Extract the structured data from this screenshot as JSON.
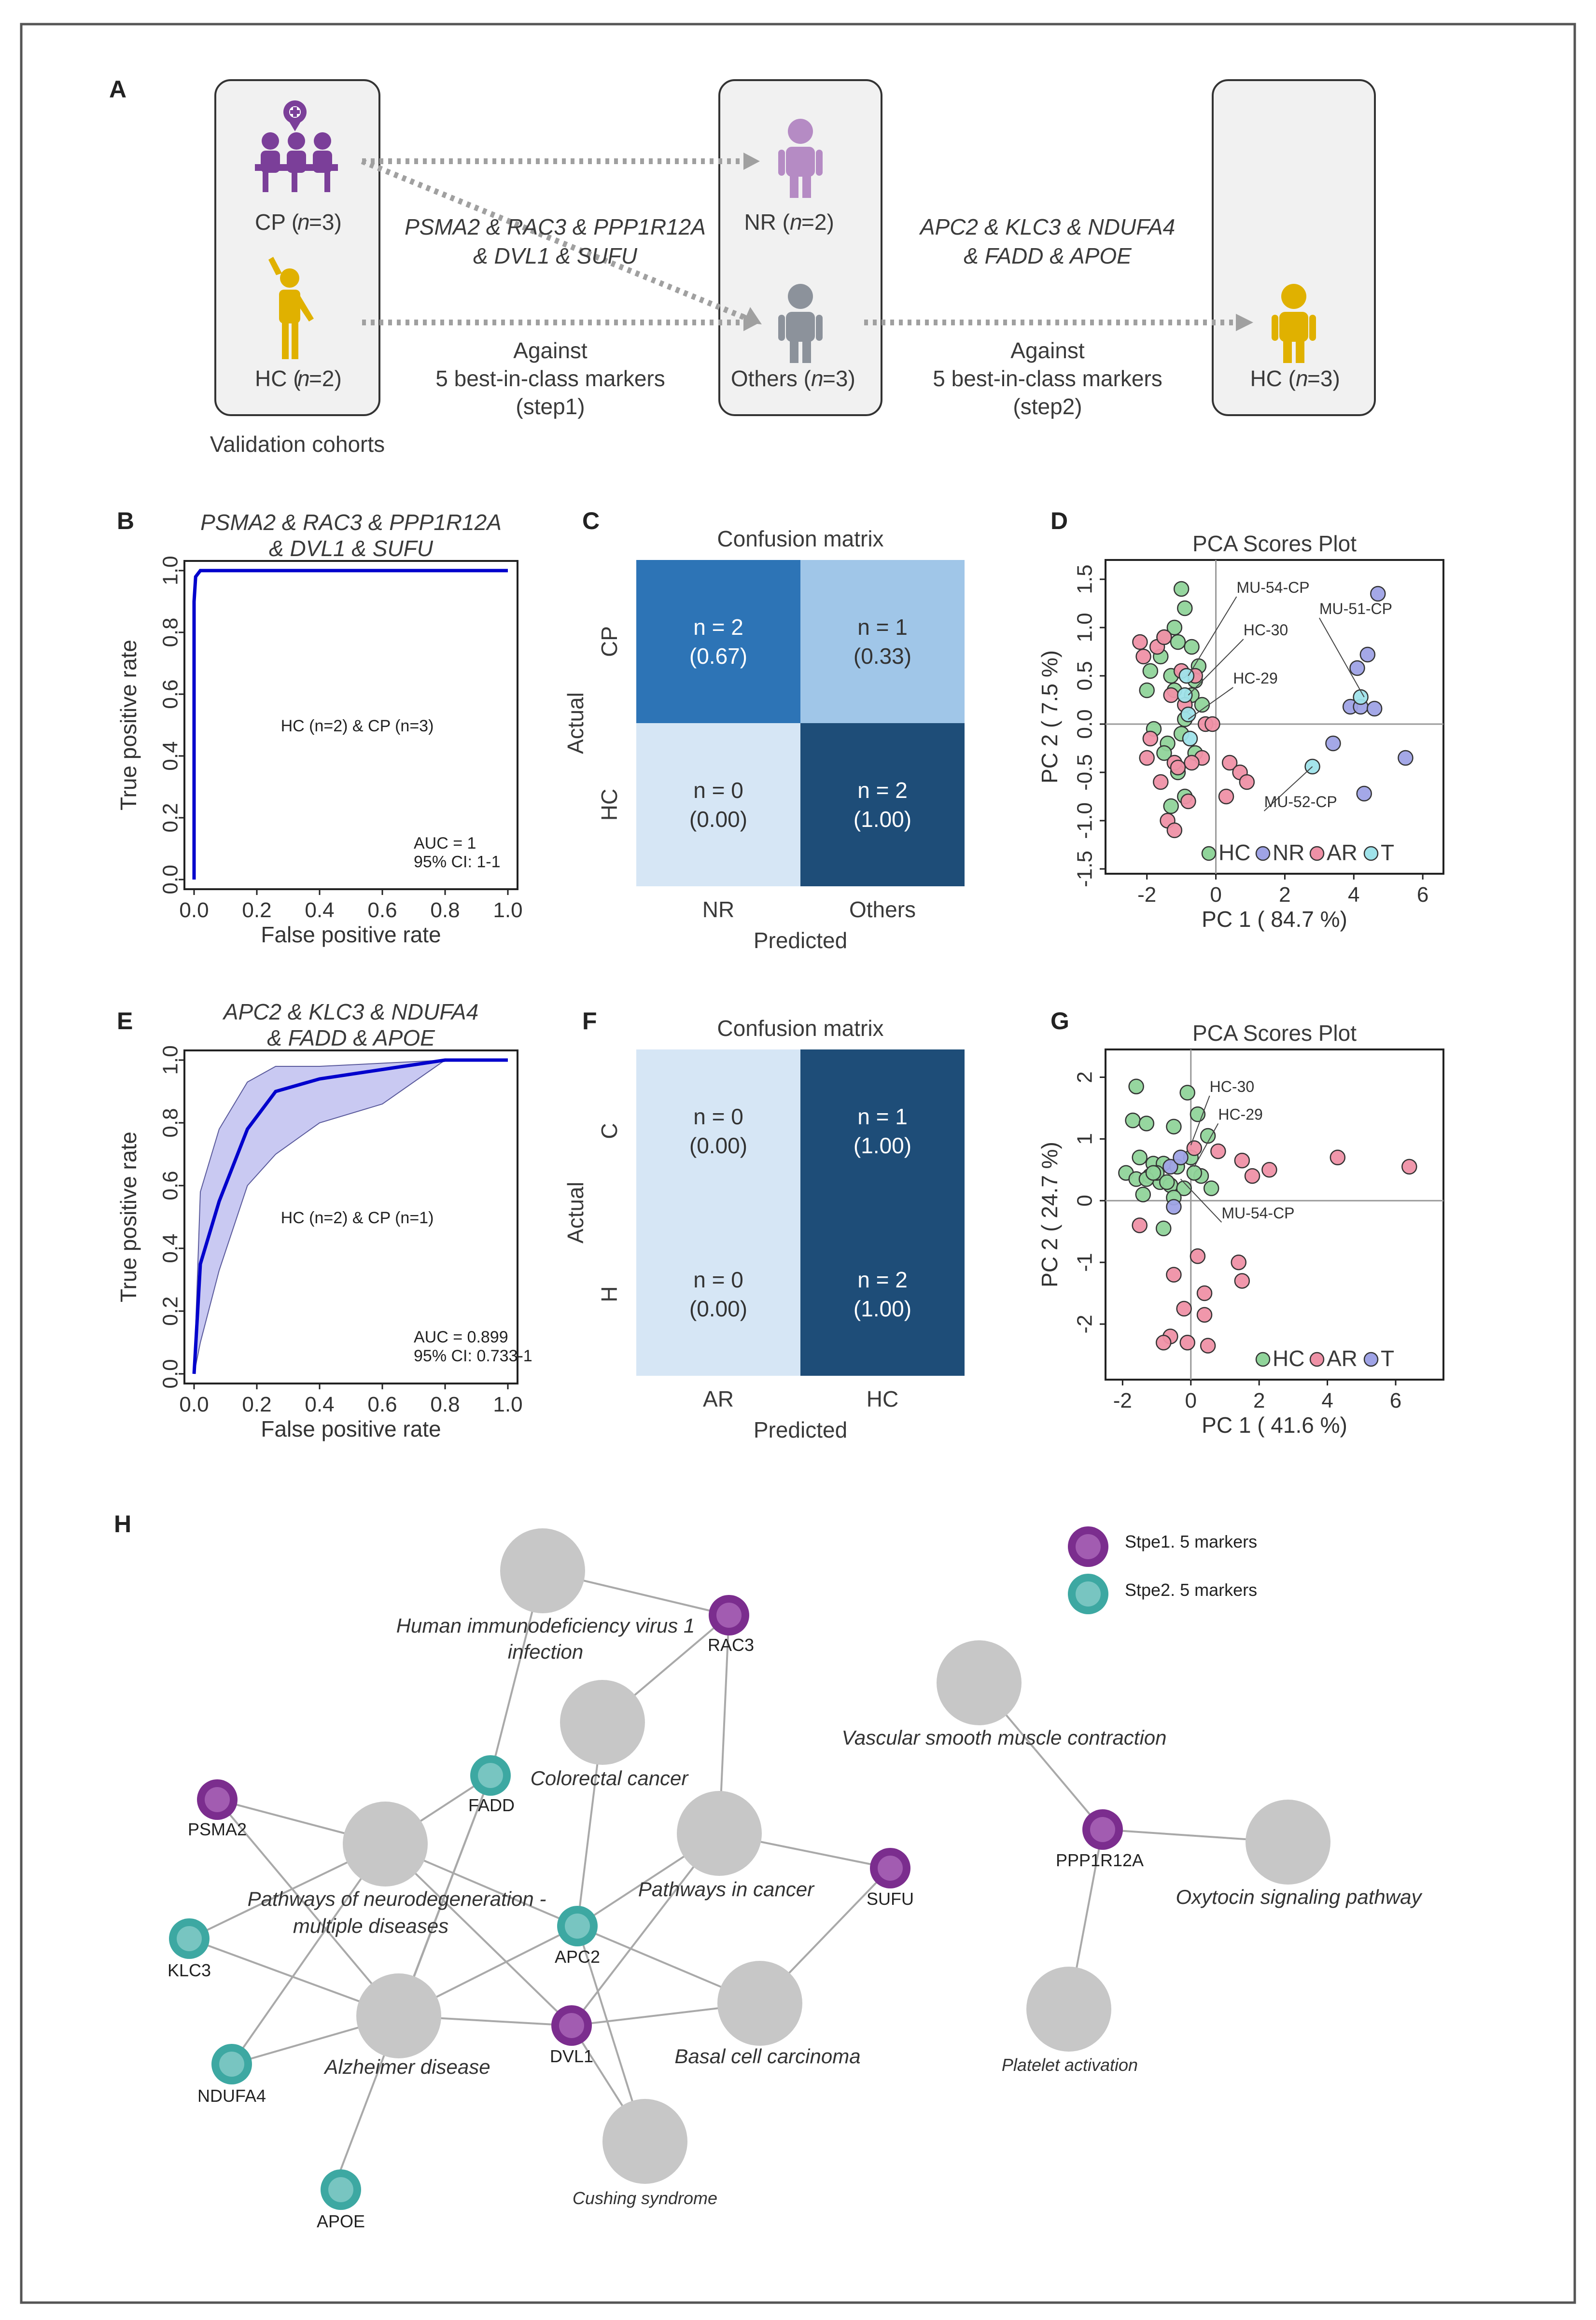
{
  "panels": {
    "A": "A",
    "B": "B",
    "C": "C",
    "D": "D",
    "E": "E",
    "F": "F",
    "G": "G",
    "H": "H"
  },
  "panel_a": {
    "cp_label": "CP (",
    "hc_label": "HC (",
    "n_eq_3": "n",
    "count_3": "=3)",
    "count_2": "=2)",
    "nr_label": "NR (",
    "others_label": "Others (",
    "hc3_label": "HC (",
    "validation_cohorts": "Validation cohorts",
    "markers1_line1": "PSMA2 & RAC3 & PPP1R12A",
    "markers1_line2": "& DVL1 & SUFU",
    "against": "Against",
    "best_in_class": "5 best-in-class markers",
    "step1": "(step1)",
    "markers2_line1": "APC2 & KLC3 & NDUFA4",
    "markers2_line2": "& FADD & APOE",
    "step2": "(step2)"
  },
  "colors": {
    "purple": "#7b3f99",
    "gold": "#e0b100",
    "lavender": "#b58bc4",
    "grey_person": "#8c929b",
    "arrow": "#a0a0a0",
    "cohort_box": "#f1f1f1",
    "roc_line": "#0000cc",
    "roc_band": "#c9c9f2",
    "hc_pt": "#90d49a",
    "nr_pt": "#9fa3e6",
    "ar_pt": "#ef91a6",
    "t_pt": "#9fe3ea",
    "cm_dark": "#1e4d78",
    "cm_mid": "#2d74b6",
    "cm_light": "#a0c6e8",
    "cm_pale": "#d6e6f5",
    "node_grey": "#c7c7c7",
    "step1": "#7b2d8e",
    "step2": "#3da8a2"
  },
  "chart_data": [
    {
      "id": "B",
      "type": "line",
      "title_line1": "PSMA2 & RAC3 & PPP1R12A",
      "title_line2": "& DVL1 & SUFU",
      "xlabel": "False positive rate",
      "ylabel": "True positive rate",
      "xlim": [
        0,
        1
      ],
      "ylim": [
        0,
        1
      ],
      "xticks": [
        "0.0",
        "0.2",
        "0.4",
        "0.6",
        "0.8",
        "1.0"
      ],
      "yticks": [
        "0.0",
        "0.2",
        "0.4",
        "0.6",
        "0.8",
        "1.0"
      ],
      "x": [
        0,
        0.0,
        0.005,
        0.02,
        1.0
      ],
      "y": [
        0,
        0.9,
        0.98,
        1.0,
        1.0
      ],
      "center_text": "HC (n=2) & CP (n=3)",
      "auc": "AUC = 1",
      "ci": "95% CI: 1-1"
    },
    {
      "id": "E",
      "type": "line",
      "title_line1": "APC2 & KLC3 & NDUFA4",
      "title_line2": "& FADD & APOE",
      "xlabel": "False positive rate",
      "ylabel": "True positive rate",
      "xlim": [
        0,
        1
      ],
      "ylim": [
        0,
        1
      ],
      "xticks": [
        "0.0",
        "0.2",
        "0.4",
        "0.6",
        "0.8",
        "1.0"
      ],
      "yticks": [
        "0.0",
        "0.2",
        "0.4",
        "0.6",
        "0.8",
        "1.0"
      ],
      "x": [
        0,
        0.02,
        0.08,
        0.17,
        0.26,
        0.4,
        0.6,
        0.8,
        1.0
      ],
      "y": [
        0,
        0.35,
        0.55,
        0.78,
        0.9,
        0.94,
        0.97,
        1.0,
        1.0
      ],
      "band_upper": [
        0,
        0.58,
        0.78,
        0.93,
        0.98,
        0.98,
        0.99,
        1.0,
        1.0
      ],
      "band_lower": [
        0,
        0.1,
        0.33,
        0.6,
        0.7,
        0.8,
        0.86,
        1.0,
        1.0
      ],
      "band_x": [
        0,
        0.02,
        0.08,
        0.17,
        0.26,
        0.4,
        0.6,
        0.8,
        1.0
      ],
      "center_text": "HC (n=2) & CP (n=1)",
      "auc": "AUC = 0.899",
      "ci": "95% CI: 0.733-1"
    },
    {
      "id": "C",
      "type": "heatmap",
      "title": "Confusion matrix",
      "xlabel": "Predicted",
      "ylabel": "Actual",
      "cols": [
        "NR",
        "Others"
      ],
      "rows": [
        "CP",
        "HC"
      ],
      "cells": [
        [
          {
            "n": "n = 2",
            "p": "(0.67)",
            "color": "#2d74b6"
          },
          {
            "n": "n = 1",
            "p": "(0.33)",
            "color": "#a0c6e8"
          }
        ],
        [
          {
            "n": "n = 0",
            "p": "(0.00)",
            "color": "#d6e6f5"
          },
          {
            "n": "n = 2",
            "p": "(1.00)",
            "color": "#1e4d78"
          }
        ]
      ]
    },
    {
      "id": "F",
      "type": "heatmap",
      "title": "Confusion matrix",
      "xlabel": "Predicted",
      "ylabel": "Actual",
      "cols": [
        "AR",
        "HC"
      ],
      "rows": [
        "C",
        "H"
      ],
      "cells": [
        [
          {
            "n": "n = 0",
            "p": "(0.00)",
            "color": "#d6e6f5"
          },
          {
            "n": "n = 1",
            "p": "(1.00)",
            "color": "#1e4d78"
          }
        ],
        [
          {
            "n": "n = 0",
            "p": "(0.00)",
            "color": "#d6e6f5"
          },
          {
            "n": "n = 2",
            "p": "(1.00)",
            "color": "#1e4d78"
          }
        ]
      ]
    },
    {
      "id": "D",
      "type": "scatter",
      "title": "PCA Scores Plot",
      "xlabel": "PC 1 ( 84.7 %)",
      "ylabel": "PC 2 ( 7.5 %)",
      "xlim": [
        -3.2,
        6.6
      ],
      "ylim": [
        -1.55,
        1.7
      ],
      "xticks": [
        -2,
        0,
        2,
        4,
        6
      ],
      "yticks": [
        -1.5,
        -1.0,
        -0.5,
        0.0,
        0.5,
        1.0,
        1.5
      ],
      "ytick_labels": [
        "-1.5",
        "-1.0",
        "-0.5",
        "0.0",
        "0.5",
        "1.0",
        "1.5"
      ],
      "legend": [
        "HC",
        "NR",
        "AR",
        "T"
      ],
      "annotations": [
        {
          "text": "MU-54-CP",
          "px": -0.8,
          "py": 0.5,
          "tx": 0.6,
          "ty": 1.32
        },
        {
          "text": "MU-51-CP",
          "px": 4.3,
          "py": 0.28,
          "tx": 3.0,
          "ty": 1.1
        },
        {
          "text": "HC-30",
          "px": -0.8,
          "py": 0.3,
          "tx": 0.8,
          "ty": 0.88
        },
        {
          "text": "HC-29",
          "px": -0.8,
          "py": 0.05,
          "tx": 0.5,
          "ty": 0.38
        },
        {
          "text": "MU-52-CP",
          "px": 2.8,
          "py": -0.44,
          "tx": 1.4,
          "ty": -0.9
        }
      ],
      "series": [
        {
          "name": "HC",
          "color": "#90d49a",
          "x": [
            -1.0,
            -0.9,
            -1.2,
            -1.1,
            -0.7,
            -0.5,
            -1.5,
            -1.9,
            -1.6,
            -0.6,
            -1.3,
            -0.7,
            -1.2,
            -0.4,
            -0.9,
            -1.4,
            -1.5,
            -1.8,
            -1.0,
            -0.6,
            -1.1,
            -0.9,
            -1.3,
            -2.0
          ],
          "y": [
            1.4,
            1.2,
            1.0,
            0.85,
            0.8,
            0.6,
            0.9,
            0.55,
            0.7,
            0.45,
            0.5,
            0.3,
            0.35,
            0.2,
            0.05,
            -0.2,
            -0.3,
            -0.05,
            -0.1,
            -0.3,
            -0.5,
            -0.75,
            -0.85,
            0.35
          ]
        },
        {
          "name": "NR",
          "color": "#9fa3e6",
          "x": [
            4.7,
            4.4,
            4.1,
            3.9,
            4.2,
            4.6,
            3.4,
            5.5,
            4.3
          ],
          "y": [
            1.35,
            0.72,
            0.58,
            0.18,
            0.18,
            0.16,
            -0.2,
            -0.35,
            -0.72
          ]
        },
        {
          "name": "AR",
          "color": "#ef91a6",
          "x": [
            -2.2,
            -1.7,
            -1.5,
            -2.1,
            -1.0,
            -0.6,
            -1.3,
            -0.9,
            -0.3,
            0.4,
            0.7,
            0.9,
            0.3,
            -0.1,
            -1.2,
            -1.1,
            -1.6,
            -2.0,
            -1.9,
            -0.8,
            -0.4,
            -1.4,
            -1.2,
            -0.7
          ],
          "y": [
            0.85,
            0.8,
            0.9,
            0.7,
            0.55,
            0.5,
            0.3,
            0.2,
            0.0,
            -0.4,
            -0.5,
            -0.6,
            -0.75,
            0.0,
            -0.4,
            -0.45,
            -0.6,
            -0.35,
            -0.15,
            -0.8,
            -0.35,
            -1.0,
            -1.1,
            -0.4
          ]
        },
        {
          "name": "T",
          "color": "#9fe3ea",
          "x": [
            -0.9,
            -0.85,
            4.2,
            2.8,
            -0.8,
            -0.75
          ],
          "y": [
            0.3,
            0.5,
            0.28,
            -0.44,
            0.1,
            -0.15
          ]
        }
      ]
    },
    {
      "id": "G",
      "type": "scatter",
      "title": "PCA Scores Plot",
      "xlabel": "PC 1 ( 41.6 %)",
      "ylabel": "PC 2 ( 24.7 %)",
      "xlim": [
        -2.5,
        7.4
      ],
      "ylim": [
        -2.9,
        2.45
      ],
      "xticks": [
        -2,
        0,
        2,
        4,
        6
      ],
      "yticks": [
        -2,
        -1,
        0,
        1,
        2
      ],
      "ytick_labels": [
        "-2",
        "-1",
        "0",
        "1",
        "2"
      ],
      "legend": [
        "HC",
        "AR",
        "T"
      ],
      "annotations": [
        {
          "text": "HC-30",
          "px": 0.0,
          "py": 0.9,
          "tx": 0.55,
          "ty": 1.7
        },
        {
          "text": "HC-29",
          "px": 0.1,
          "py": 0.55,
          "tx": 0.8,
          "ty": 1.25
        },
        {
          "text": "MU-54-CP",
          "px": -0.3,
          "py": 0.35,
          "tx": 0.9,
          "ty": -0.35
        }
      ],
      "series": [
        {
          "name": "HC",
          "color": "#90d49a",
          "x": [
            -1.6,
            -1.7,
            -1.3,
            -0.5,
            -0.1,
            0.2,
            0.5,
            -1.5,
            -1.1,
            -0.8,
            -0.4,
            0.3,
            -1.9,
            -1.6,
            -1.2,
            -0.9,
            -0.6,
            -0.2,
            -1.4,
            -1.0,
            -0.7,
            0.1,
            -0.5,
            -1.3,
            0.0,
            0.6,
            -0.8,
            -1.1
          ],
          "y": [
            1.85,
            1.3,
            1.25,
            1.2,
            1.75,
            1.4,
            1.05,
            0.7,
            0.6,
            0.6,
            0.55,
            0.4,
            0.45,
            0.35,
            0.4,
            0.3,
            0.25,
            0.2,
            0.1,
            0.45,
            0.3,
            0.45,
            0.05,
            0.35,
            0.7,
            0.2,
            -0.45,
            0.45
          ]
        },
        {
          "name": "AR",
          "color": "#ef91a6",
          "x": [
            0.1,
            0.8,
            1.5,
            1.8,
            2.3,
            4.3,
            6.4,
            -1.5,
            0.2,
            1.4,
            1.5,
            -0.5,
            0.4,
            0.4,
            -0.2,
            -0.6,
            -0.8,
            -0.1,
            0.5
          ],
          "y": [
            0.85,
            0.8,
            0.65,
            0.4,
            0.5,
            0.7,
            0.55,
            -0.4,
            -0.9,
            -1.0,
            -1.3,
            -1.2,
            -1.5,
            -1.85,
            -1.75,
            -2.2,
            -2.3,
            -2.3,
            -2.35
          ]
        },
        {
          "name": "T",
          "color": "#9fa3e6",
          "x": [
            -0.6,
            -0.3,
            -0.5
          ],
          "y": [
            0.55,
            0.7,
            -0.1
          ]
        }
      ]
    }
  ],
  "network": {
    "legend_step1": "Stpe1. 5 markers",
    "legend_step2": "Stpe2. 5 markers",
    "pathways": {
      "hiv": "Human immunodeficiency virus 1",
      "hiv2": "infection",
      "crc": "Colorectal cancer",
      "neuro": "Pathways of neurodegeneration -",
      "neuro2": "multiple diseases",
      "cancer": "Pathways in cancer",
      "alz": "Alzheimer disease",
      "bcc": "Basal cell carcinoma",
      "cushing": "Cushing syndrome",
      "vsmc": "Vascular smooth muscle contraction",
      "oxy": "Oxytocin signaling pathway",
      "platelet": "Platelet activation"
    },
    "genes": {
      "rac3": "RAC3",
      "psma2": "PSMA2",
      "fadd": "FADD",
      "klc3": "KLC3",
      "apc2": "APC2",
      "ndufa4": "NDUFA4",
      "dvl1": "DVL1",
      "sufu": "SUFU",
      "apoe": "APOE",
      "ppp1r12a": "PPP1R12A"
    }
  }
}
